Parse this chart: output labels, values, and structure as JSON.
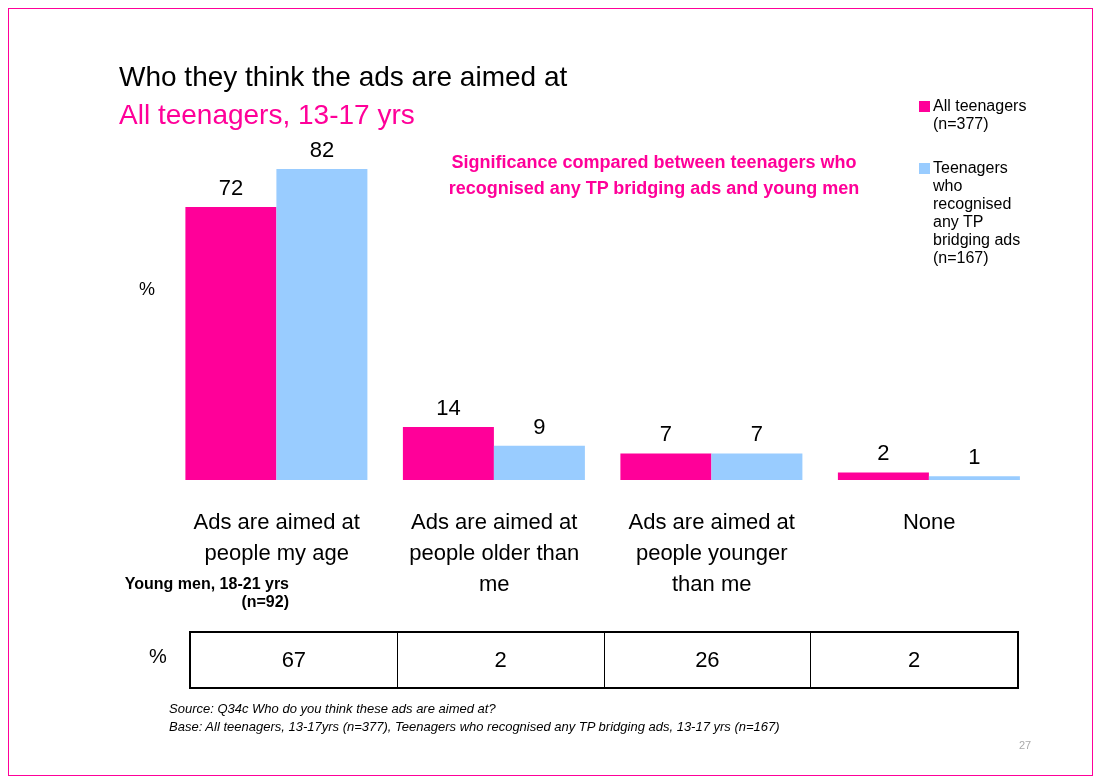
{
  "chart_data": {
    "type": "bar",
    "title": "Who they think the ads are aimed at",
    "subtitle": "All teenagers, 13-17 yrs",
    "ylabel": "%",
    "categories": [
      "Ads are aimed at people my age",
      "Ads are aimed at people older than me",
      "Ads are aimed at people younger than me",
      "None"
    ],
    "series": [
      {
        "name": "All teenagers (n=377)",
        "color": "#ff0099",
        "values": [
          72,
          14,
          7,
          2
        ]
      },
      {
        "name": "Teenagers who recognised any TP bridging ads (n=167)",
        "color": "#99ccff",
        "values": [
          82,
          9,
          7,
          1
        ]
      }
    ],
    "data_labels": true,
    "legend": "top right",
    "grid": false,
    "annotations": [
      "Significance compared between teenagers who recognised any TP bridging ads and young men",
      "Young men, 18-21 yrs (n=92)",
      "%",
      "67",
      "2",
      "26",
      "2",
      "Source:  Q34c Who do you think these ads are aimed at?",
      "Base:  All teenagers, 13-17yrs (n=377), Teenagers who recognised any TP bridging ads, 13-17 yrs (n=167)",
      "27"
    ]
  }
}
